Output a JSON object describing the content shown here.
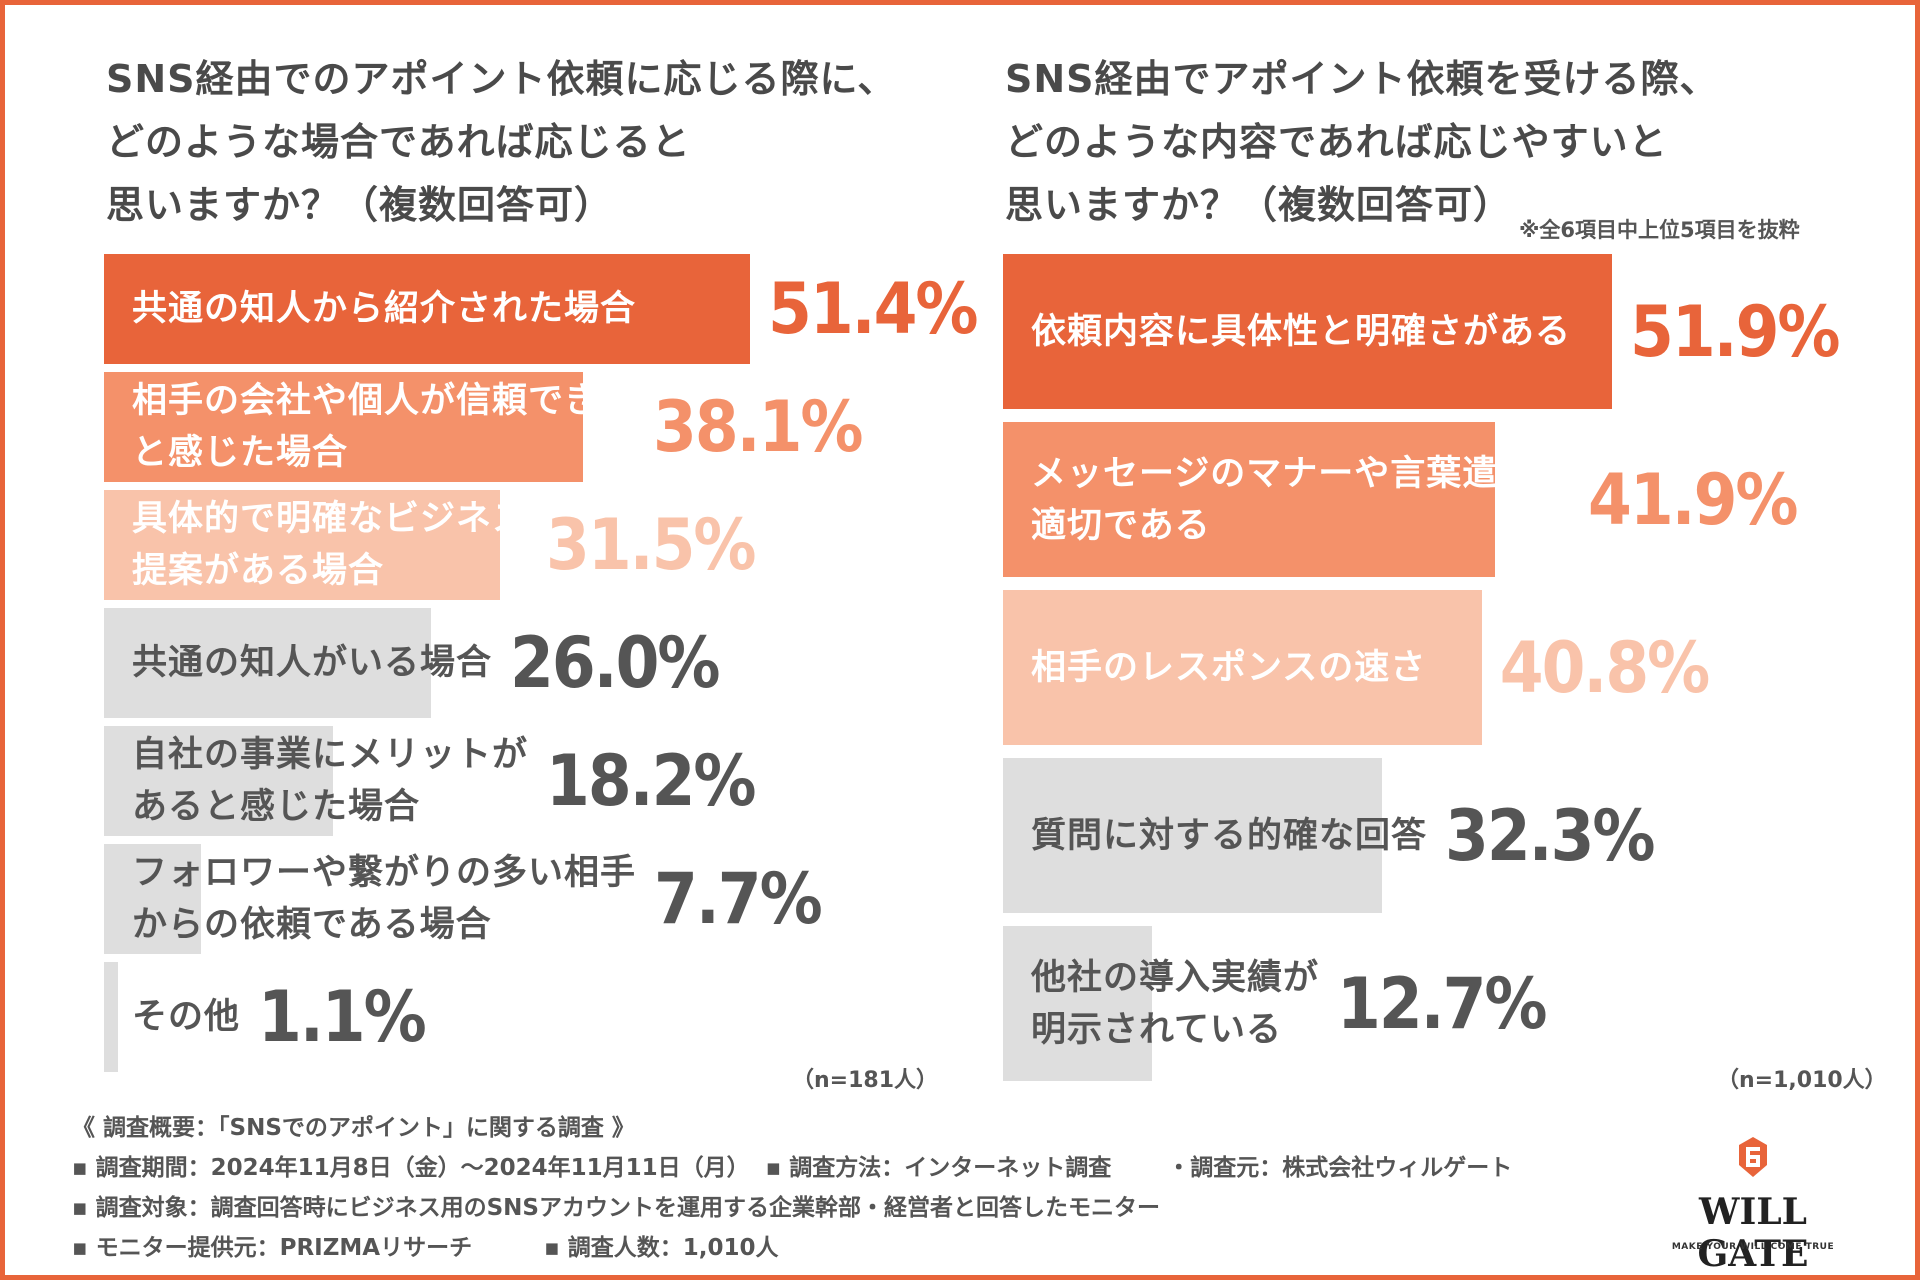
{
  "left": {
    "title": "SNS経由でのアポイント依頼に応じる際に、\nどのような場合であれば応じると\n思いますか？（複数回答可）",
    "n_label": "（n=181人）"
  },
  "right": {
    "title": "SNS経由でアポイント依頼を受ける際、\nどのような内容であれば応じやすいと\n思いますか？（複数回答可）",
    "note": "※全6項目中上位5項目を抜粋",
    "n_label": "（n=1,010人）"
  },
  "chart_data": [
    {
      "type": "bar",
      "orientation": "horizontal",
      "title": "SNS経由でのアポイント依頼に応じる際に、どのような場合であれば応じると思いますか？（複数回答可）",
      "categories": [
        "共通の知人から紹介された場合",
        "相手の会社や個人が信頼できる\nと感じた場合",
        "具体的で明確なビジネス\n提案がある場合",
        "共通の知人がいる場合",
        "自社の事業にメリットが\nあると感じた場合",
        "フォロワーや繋がりの多い相手\nからの依頼である場合",
        "その他"
      ],
      "values": [
        51.4,
        38.1,
        31.5,
        26.0,
        18.2,
        7.7,
        1.1
      ],
      "value_labels": [
        "51.4%",
        "38.1%",
        "31.5%",
        "26.0%",
        "18.2%",
        "7.7%",
        "1.1%"
      ],
      "bar_colors": [
        "#e8643a",
        "#f4916a",
        "#f9c3aa",
        "#dedede",
        "#dedede",
        "#dedede",
        "#dedede"
      ],
      "label_colors": [
        "#ffffff",
        "#ffffff",
        "#ffffff",
        "#555555",
        "#555555",
        "#555555",
        "#555555"
      ],
      "value_colors": [
        "#e8643a",
        "#f4916a",
        "#f9c3aa",
        "#555555",
        "#555555",
        "#555555",
        "#555555"
      ],
      "xlim": [
        0,
        51.4
      ],
      "n": "（n=181人）"
    },
    {
      "type": "bar",
      "orientation": "horizontal",
      "title": "SNS経由でアポイント依頼を受ける際、どのような内容であれば応じやすいと思いますか？（複数回答可）",
      "categories": [
        "依頼内容に具体性と明確さがある",
        "メッセージのマナーや言葉遣いが\n適切である",
        "相手のレスポンスの速さ",
        "質問に対する的確な回答",
        "他社の導入実績が\n明示されている"
      ],
      "values": [
        51.9,
        41.9,
        40.8,
        32.3,
        12.7
      ],
      "value_labels": [
        "51.9%",
        "41.9%",
        "40.8%",
        "32.3%",
        "12.7%"
      ],
      "bar_colors": [
        "#e8643a",
        "#f4916a",
        "#f9c3aa",
        "#dedede",
        "#dedede"
      ],
      "label_colors": [
        "#ffffff",
        "#ffffff",
        "#ffffff",
        "#555555",
        "#555555"
      ],
      "value_colors": [
        "#e8643a",
        "#f4916a",
        "#f9c3aa",
        "#555555",
        "#555555"
      ],
      "xlim": [
        0,
        51.9
      ],
      "n": "（n=1,010人）"
    }
  ],
  "footer": {
    "line1": "《 調査概要：「SNSでのアポイント」に関する調査 》",
    "line2": "▪ 調査期間：2024年11月8日（金）〜2024年11月11日（月）  ▪ 調査方法：インターネット調査       ・調査元：株式会社ウィルゲート",
    "line3": "▪ 調査対象：調査回答時にビジネス用のSNSアカウントを運用する企業幹部・経営者と回答したモニター",
    "line4": "▪ モニター提供元：PRIZMAリサーチ         ▪ 調査人数：1,010人"
  },
  "logo": {
    "name": "WILL GATE",
    "tagline": "MAKE YOUR WILL COME TRUE",
    "icon": "willgate-logo-icon",
    "accent": "#e8643a"
  },
  "colors": {
    "frame": "#e8643a",
    "accent": "#e8643a"
  }
}
